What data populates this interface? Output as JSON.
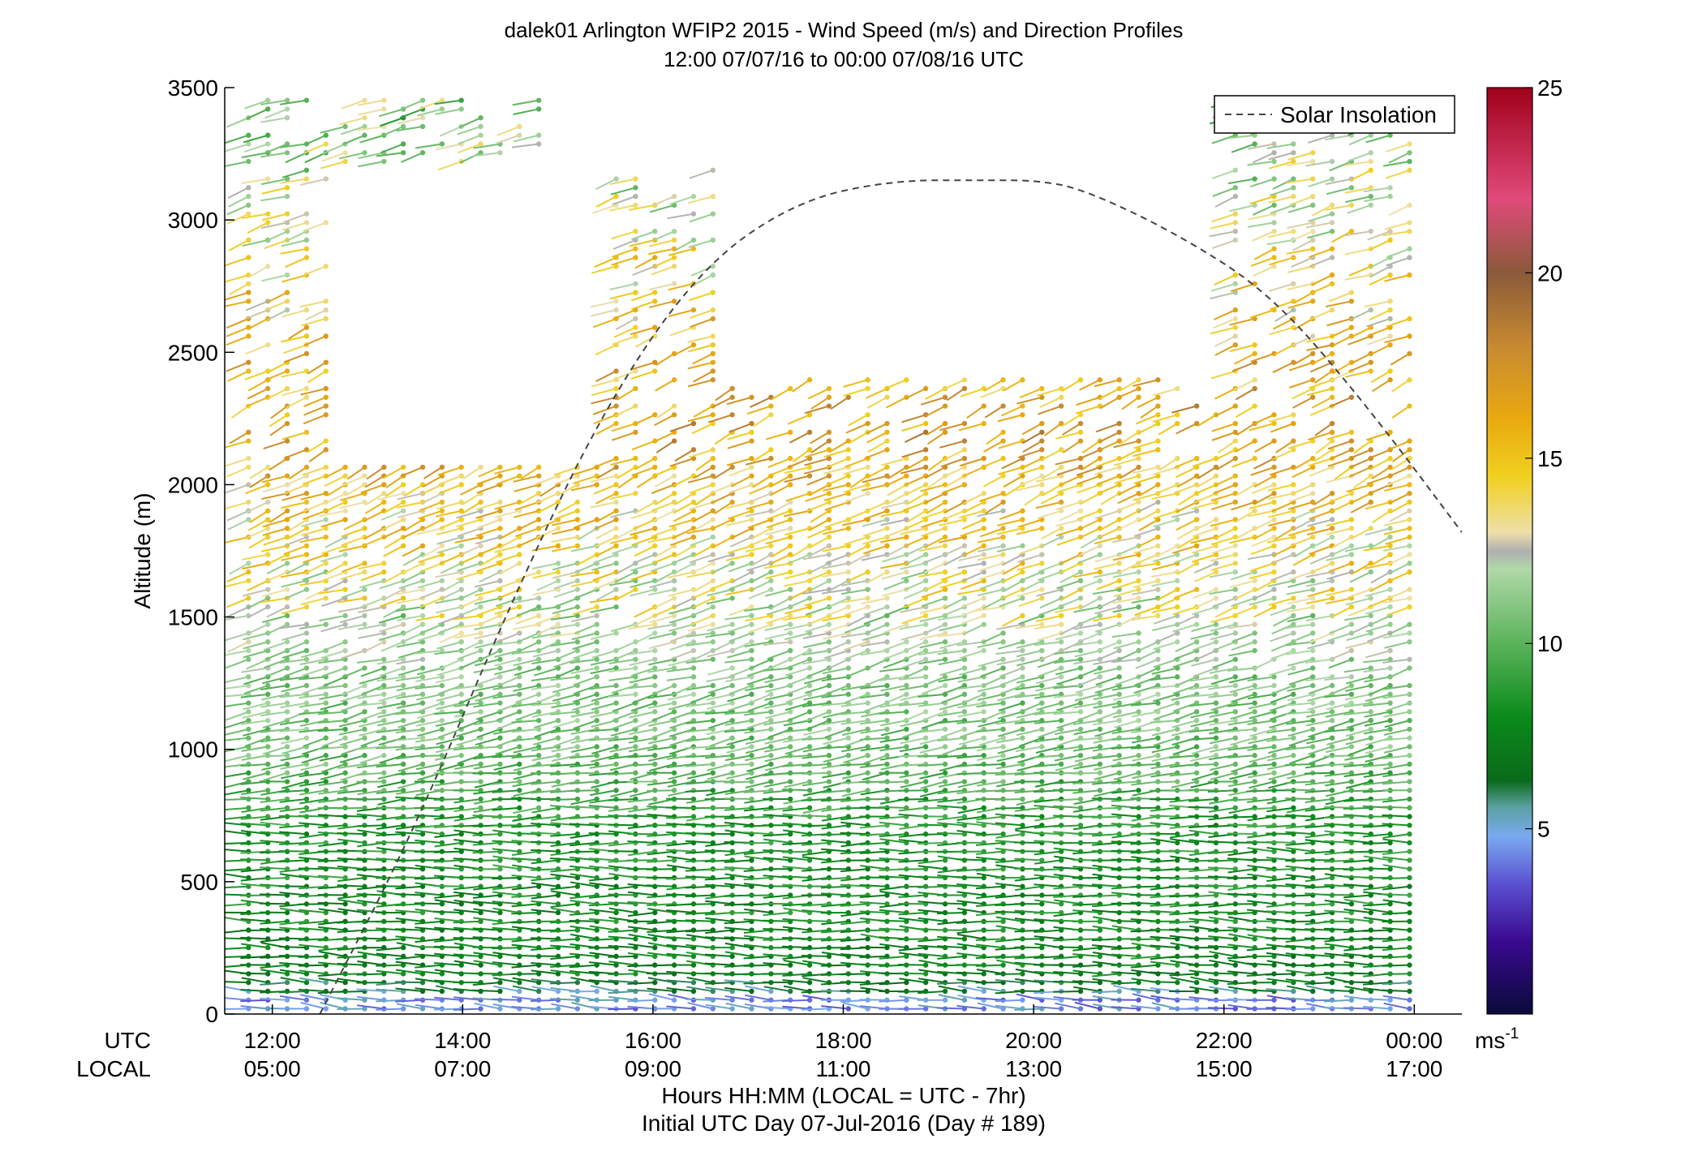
{
  "chart_data": {
    "type": "scatter",
    "title": "dalek01 Arlington WFIP2 2015 - Wind Speed (m/s) and Direction Profiles",
    "subtitle": "12:00 07/07/16 to 00:00 07/08/16  UTC",
    "ylabel": "Altitude (m)",
    "xlabel_line1": "Hours HH:MM  (LOCAL = UTC - 7hr)",
    "xlabel_line2": "Initial UTC Day 07-Jul-2016 (Day # 189)",
    "ylim": [
      0,
      3500
    ],
    "xlim_utc_hours": [
      11.5,
      24.5
    ],
    "y_ticks": [
      "0",
      "500",
      "1000",
      "1500",
      "2000",
      "2500",
      "3000",
      "3500"
    ],
    "x_row_labels": {
      "utc": "UTC",
      "local": "LOCAL"
    },
    "x_ticks_utc": [
      "12:00",
      "14:00",
      "16:00",
      "18:00",
      "20:00",
      "22:00",
      "00:00"
    ],
    "x_ticks_local": [
      "05:00",
      "07:00",
      "09:00",
      "11:00",
      "13:00",
      "15:00",
      "17:00"
    ],
    "legend": {
      "entries": [
        "Solar Insolation"
      ],
      "placement": "top-right"
    },
    "colorbar": {
      "range": [
        0,
        25
      ],
      "ticks": [
        "5",
        "10",
        "15",
        "20",
        "25"
      ],
      "unit_label": "ms",
      "unit_exponent": "-1",
      "stops": [
        {
          "v": 0,
          "color": "#0a0a3a"
        },
        {
          "v": 2,
          "color": "#3a0a90"
        },
        {
          "v": 3.5,
          "color": "#5a50d0"
        },
        {
          "v": 4.8,
          "color": "#7aaaf0"
        },
        {
          "v": 5.6,
          "color": "#5aa0a0"
        },
        {
          "v": 6.3,
          "color": "#0a6a1a"
        },
        {
          "v": 8,
          "color": "#0a8a1a"
        },
        {
          "v": 10,
          "color": "#5ab35a"
        },
        {
          "v": 12,
          "color": "#b0d8a8"
        },
        {
          "v": 12.5,
          "color": "#b0b0b0"
        },
        {
          "v": 13,
          "color": "#eee0a8"
        },
        {
          "v": 14.5,
          "color": "#f0d020"
        },
        {
          "v": 16,
          "color": "#eaaa10"
        },
        {
          "v": 18,
          "color": "#c88a30"
        },
        {
          "v": 20,
          "color": "#8a5a3a"
        },
        {
          "v": 22,
          "color": "#e04a7a"
        },
        {
          "v": 25,
          "color": "#a0001a"
        }
      ]
    },
    "solar_insolation": {
      "style": "dashed",
      "color": "#444444",
      "x_utc_hours": [
        12.5,
        13.5,
        14.5,
        15.5,
        16.5,
        17.5,
        18.5,
        19.5,
        20.0,
        20.5,
        21.5,
        22.5,
        23.5,
        24.5
      ],
      "y_m": [
        0,
        700,
        1550,
        2300,
        2820,
        3070,
        3150,
        3150,
        3150,
        3120,
        2950,
        2720,
        2300,
        1820
      ]
    },
    "barbs": {
      "description_of_fields": "wind vectors: x (UTC hours), altitude (m), speed (m/s), direction (deg from)",
      "profile_x_utc_hours_start": 11.75,
      "profile_x_utc_hours_end": 23.95,
      "profile_count": 61,
      "speed_by_altitude_m": [
        {
          "alt": 20,
          "speed": 4.5,
          "dir": 280
        },
        {
          "alt": 150,
          "speed": 7.5,
          "dir": 275
        },
        {
          "alt": 400,
          "speed": 8,
          "dir": 272
        },
        {
          "alt": 700,
          "speed": 8.5,
          "dir": 270
        },
        {
          "alt": 1000,
          "speed": 10.5,
          "dir": 250
        },
        {
          "alt": 1300,
          "speed": 11,
          "dir": 245
        },
        {
          "alt": 1600,
          "speed": 13,
          "dir": 240
        },
        {
          "alt": 1900,
          "speed": 14.5,
          "dir": 235
        },
        {
          "alt": 2200,
          "speed": 16.5,
          "dir": 230
        },
        {
          "alt": 2600,
          "speed": 15,
          "dir": 235
        },
        {
          "alt": 3000,
          "speed": 13,
          "dir": 240
        },
        {
          "alt": 3400,
          "speed": 11,
          "dir": 245
        }
      ]
    }
  }
}
